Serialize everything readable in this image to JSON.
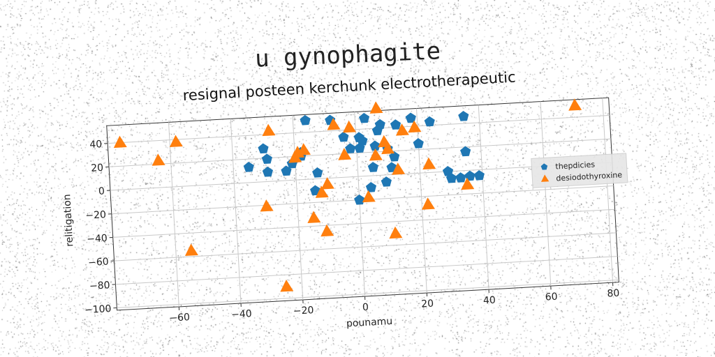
{
  "suptitle": "u gynophagite",
  "chart_data": {
    "type": "scatter",
    "title": "resignal posteen kerchunk electrotherapeutic",
    "xlabel": "pounamu",
    "ylabel": "relitigation",
    "xlim": [
      -80,
      82
    ],
    "ylim": [
      -102,
      55
    ],
    "xticks": [
      -60,
      -40,
      -20,
      0,
      20,
      40,
      60,
      80
    ],
    "yticks": [
      -100,
      -80,
      -60,
      -40,
      -20,
      0,
      20,
      40
    ],
    "grid": true,
    "legend_position": "center-right",
    "series": [
      {
        "name": "thepdicies",
        "marker": "pentagon",
        "color": "#1f77b4",
        "points": [
          [
            -35,
            13
          ],
          [
            -30,
            28
          ],
          [
            -29,
            19
          ],
          [
            -29,
            8
          ],
          [
            -23,
            8
          ],
          [
            -21,
            14
          ],
          [
            -18,
            20
          ],
          [
            -18,
            23
          ],
          [
            -16,
            50
          ],
          [
            -14,
            -10
          ],
          [
            -13,
            5
          ],
          [
            -8,
            49
          ],
          [
            -4,
            34
          ],
          [
            -2,
            24
          ],
          [
            0,
            -20
          ],
          [
            1,
            24
          ],
          [
            1,
            33
          ],
          [
            2,
            30
          ],
          [
            3,
            49
          ],
          [
            4,
            -10
          ],
          [
            5,
            7
          ],
          [
            6,
            25
          ],
          [
            7,
            38
          ],
          [
            8,
            43
          ],
          [
            9,
            -6
          ],
          [
            10,
            22
          ],
          [
            11,
            6
          ],
          [
            12,
            15
          ],
          [
            13,
            42
          ],
          [
            18,
            47
          ],
          [
            20,
            25
          ],
          [
            24,
            43
          ],
          [
            29,
            0
          ],
          [
            30,
            -6
          ],
          [
            33,
            -6
          ],
          [
            35,
            16
          ],
          [
            35,
            46
          ],
          [
            36,
            -5
          ],
          [
            39,
            -5
          ]
        ]
      },
      {
        "name": "desiodothyroxine",
        "marker": "triangle",
        "color": "#ff7f0e",
        "points": [
          [
            -76,
            40
          ],
          [
            -64,
            23
          ],
          [
            -58,
            38
          ],
          [
            -55,
            -55
          ],
          [
            -30,
            -21
          ],
          [
            -28,
            43
          ],
          [
            -25,
            -90
          ],
          [
            -20,
            19
          ],
          [
            -19,
            23
          ],
          [
            -17,
            25
          ],
          [
            -15,
            -33
          ],
          [
            -12,
            -12
          ],
          [
            -11,
            -45
          ],
          [
            -10,
            -5
          ],
          [
            -7,
            45
          ],
          [
            -4,
            19
          ],
          [
            -2,
            42
          ],
          [
            3,
            -18
          ],
          [
            6,
            17
          ],
          [
            7,
            57
          ],
          [
            9,
            28
          ],
          [
            10,
            22
          ],
          [
            11,
            -50
          ],
          [
            13,
            4
          ],
          [
            15,
            37
          ],
          [
            19,
            39
          ],
          [
            22,
            -27
          ],
          [
            23,
            7
          ],
          [
            35,
            -12
          ],
          [
            71,
            50
          ]
        ]
      }
    ]
  }
}
